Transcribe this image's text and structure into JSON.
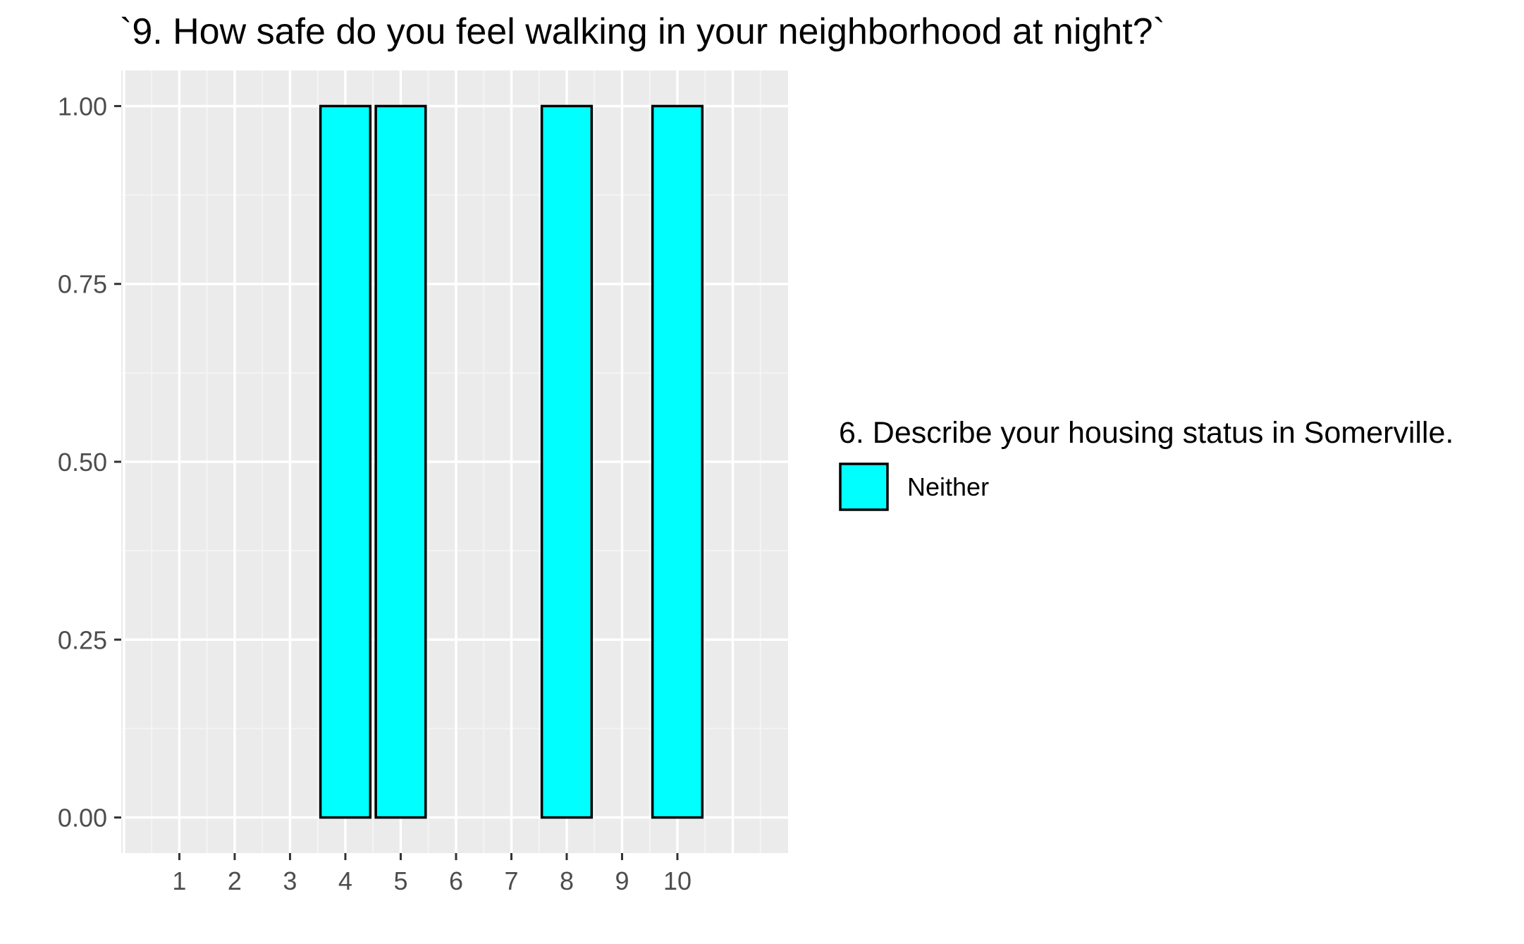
{
  "chart_data": {
    "type": "bar",
    "title": "`9. How safe do you feel walking in your neighborhood at night?`",
    "xlabel": "",
    "ylabel": "",
    "categories": [
      "1",
      "2",
      "3",
      "4",
      "5",
      "6",
      "7",
      "8",
      "9",
      "10"
    ],
    "series": [
      {
        "name": "Neither",
        "values": [
          0,
          0,
          0,
          1,
          1,
          0,
          0,
          1,
          0,
          1
        ]
      }
    ],
    "ylim": [
      -0.05,
      1.05
    ],
    "xlim": [
      -0.05,
      12
    ],
    "yticks": [
      "0.00",
      "0.25",
      "0.50",
      "0.75",
      "1.00"
    ],
    "ytick_values": [
      0,
      0.25,
      0.5,
      0.75,
      1
    ],
    "grid": true,
    "legend": {
      "title": "6. Describe your housing status in Somerville.",
      "placement": "right",
      "items": [
        {
          "label": "Neither",
          "color": "#00FFFF"
        }
      ]
    },
    "colors": {
      "panel_background": "#EBEBEB",
      "grid_major": "#FFFFFF",
      "grid_minor": "#F4F4F4",
      "bar_fill": "#00FFFF",
      "bar_stroke": "#000000",
      "axis_text": "#4D4D4D",
      "tick": "#333333"
    }
  }
}
